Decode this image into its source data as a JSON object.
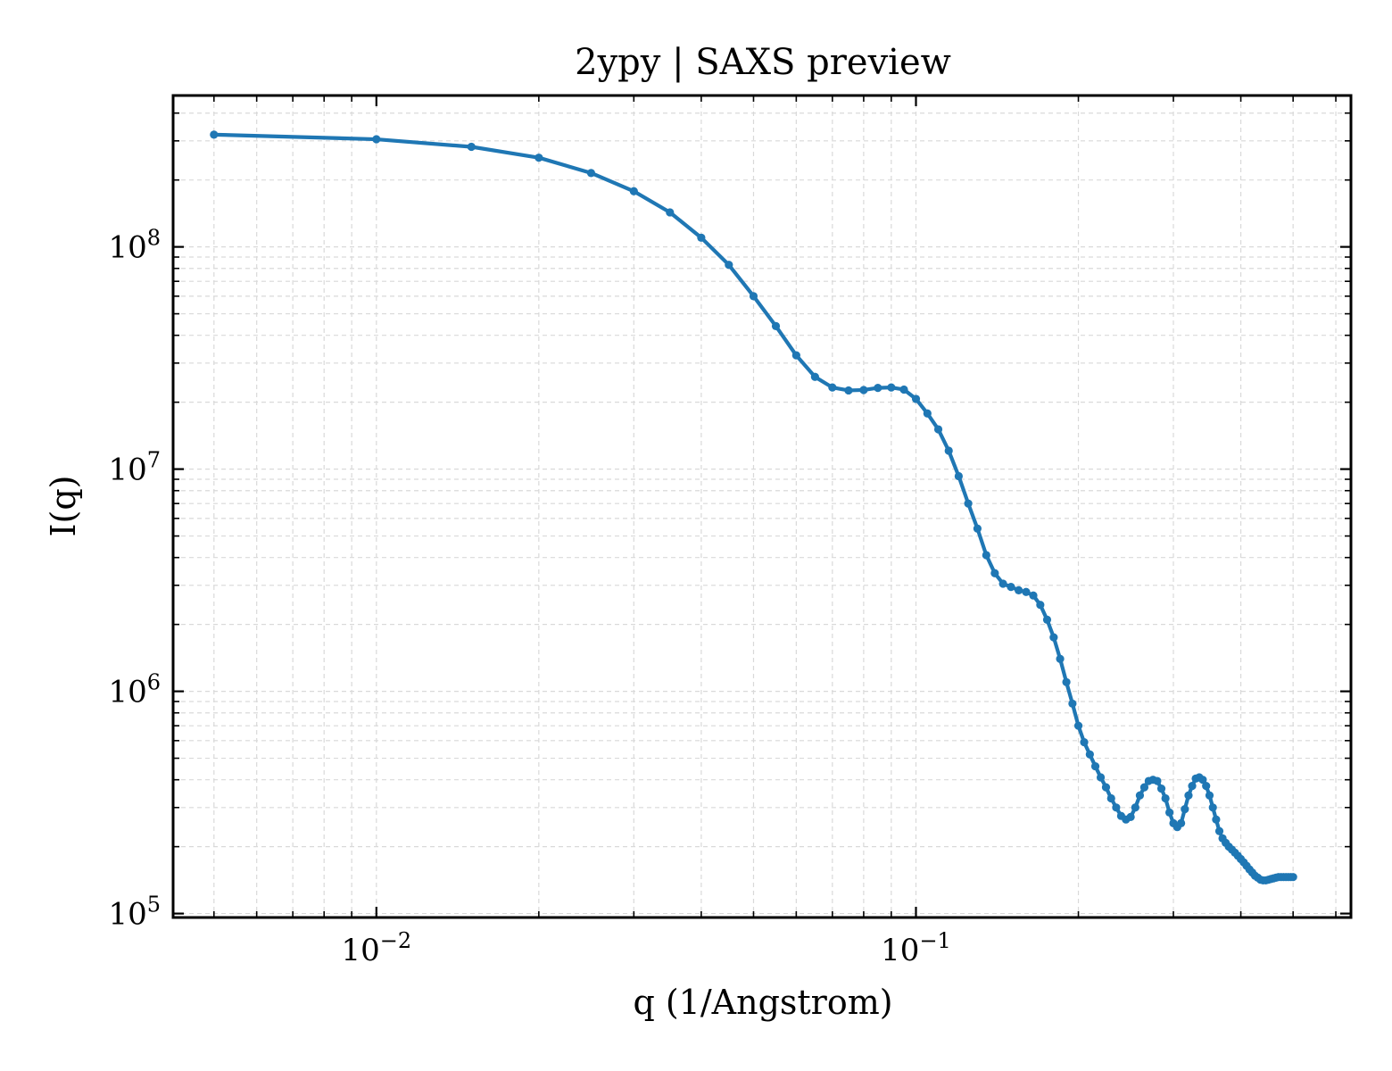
{
  "chart_data": {
    "type": "line",
    "title": "2ypy | SAXS preview",
    "xlabel": "q (1/Angstrom)",
    "ylabel": "I(q)",
    "xscale": "log",
    "yscale": "log",
    "xlim": [
      0.0042,
      0.64
    ],
    "ylim": [
      96000,
      480000000
    ],
    "grid": true,
    "x_ticks": [
      {
        "base": "10",
        "exp": "−2",
        "value": 0.01
      },
      {
        "base": "10",
        "exp": "−1",
        "value": 0.1
      }
    ],
    "y_ticks": [
      {
        "base": "10",
        "exp": "5",
        "value": 100000
      },
      {
        "base": "10",
        "exp": "6",
        "value": 1000000
      },
      {
        "base": "10",
        "exp": "7",
        "value": 10000000
      },
      {
        "base": "10",
        "exp": "8",
        "value": 100000000
      }
    ],
    "colors": {
      "series": "#1f77b4",
      "grid": "#d9d9d9"
    },
    "series": [
      {
        "x": [
          0.005,
          0.01,
          0.015,
          0.02,
          0.025,
          0.03,
          0.035,
          0.04,
          0.045,
          0.05,
          0.055,
          0.06,
          0.065,
          0.07,
          0.075,
          0.08,
          0.085,
          0.09,
          0.095,
          0.1,
          0.105,
          0.11,
          0.115,
          0.12,
          0.125,
          0.13,
          0.135,
          0.14,
          0.145,
          0.15,
          0.155,
          0.16,
          0.165,
          0.17,
          0.175,
          0.18,
          0.185,
          0.19,
          0.195,
          0.2,
          0.205,
          0.21,
          0.215,
          0.22,
          0.225,
          0.23,
          0.235,
          0.24,
          0.245,
          0.25,
          0.255,
          0.26,
          0.265,
          0.27,
          0.275,
          0.28,
          0.285,
          0.29,
          0.295,
          0.3,
          0.305,
          0.31,
          0.315,
          0.32,
          0.325,
          0.33,
          0.335,
          0.34,
          0.345,
          0.35,
          0.355,
          0.36,
          0.365,
          0.37,
          0.375,
          0.38,
          0.385,
          0.39,
          0.395,
          0.4,
          0.405,
          0.41,
          0.415,
          0.42,
          0.425,
          0.43,
          0.435,
          0.44,
          0.445,
          0.45,
          0.455,
          0.46,
          0.465,
          0.47,
          0.475,
          0.48,
          0.485,
          0.49,
          0.495,
          0.5
        ],
        "y": [
          320000000,
          305000000,
          282000000,
          252000000,
          215000000,
          178000000,
          143000000,
          110000000,
          83000000,
          60000000,
          44000000,
          32500000,
          26000000,
          23300000,
          22600000,
          22700000,
          23200000,
          23300000,
          22800000,
          20700000,
          17800000,
          15100000,
          12100000,
          9300000,
          7000000,
          5400000,
          4100000,
          3400000,
          3050000,
          2950000,
          2850000,
          2800000,
          2700000,
          2450000,
          2100000,
          1750000,
          1400000,
          1100000,
          880000,
          700000,
          590000,
          520000,
          460000,
          410000,
          370000,
          330000,
          300000,
          275000,
          265000,
          272000,
          300000,
          340000,
          370000,
          395000,
          400000,
          395000,
          365000,
          330000,
          285000,
          255000,
          245000,
          255000,
          295000,
          340000,
          375000,
          405000,
          410000,
          400000,
          375000,
          340000,
          300000,
          265000,
          235000,
          218000,
          208000,
          200000,
          194000,
          188000,
          182000,
          176000,
          170000,
          164000,
          158000,
          153000,
          148000,
          145000,
          142000,
          141000,
          141000,
          142000,
          143000,
          144000,
          145000,
          146000,
          146000,
          146000,
          146000,
          146000,
          146000,
          146000
        ]
      }
    ]
  }
}
